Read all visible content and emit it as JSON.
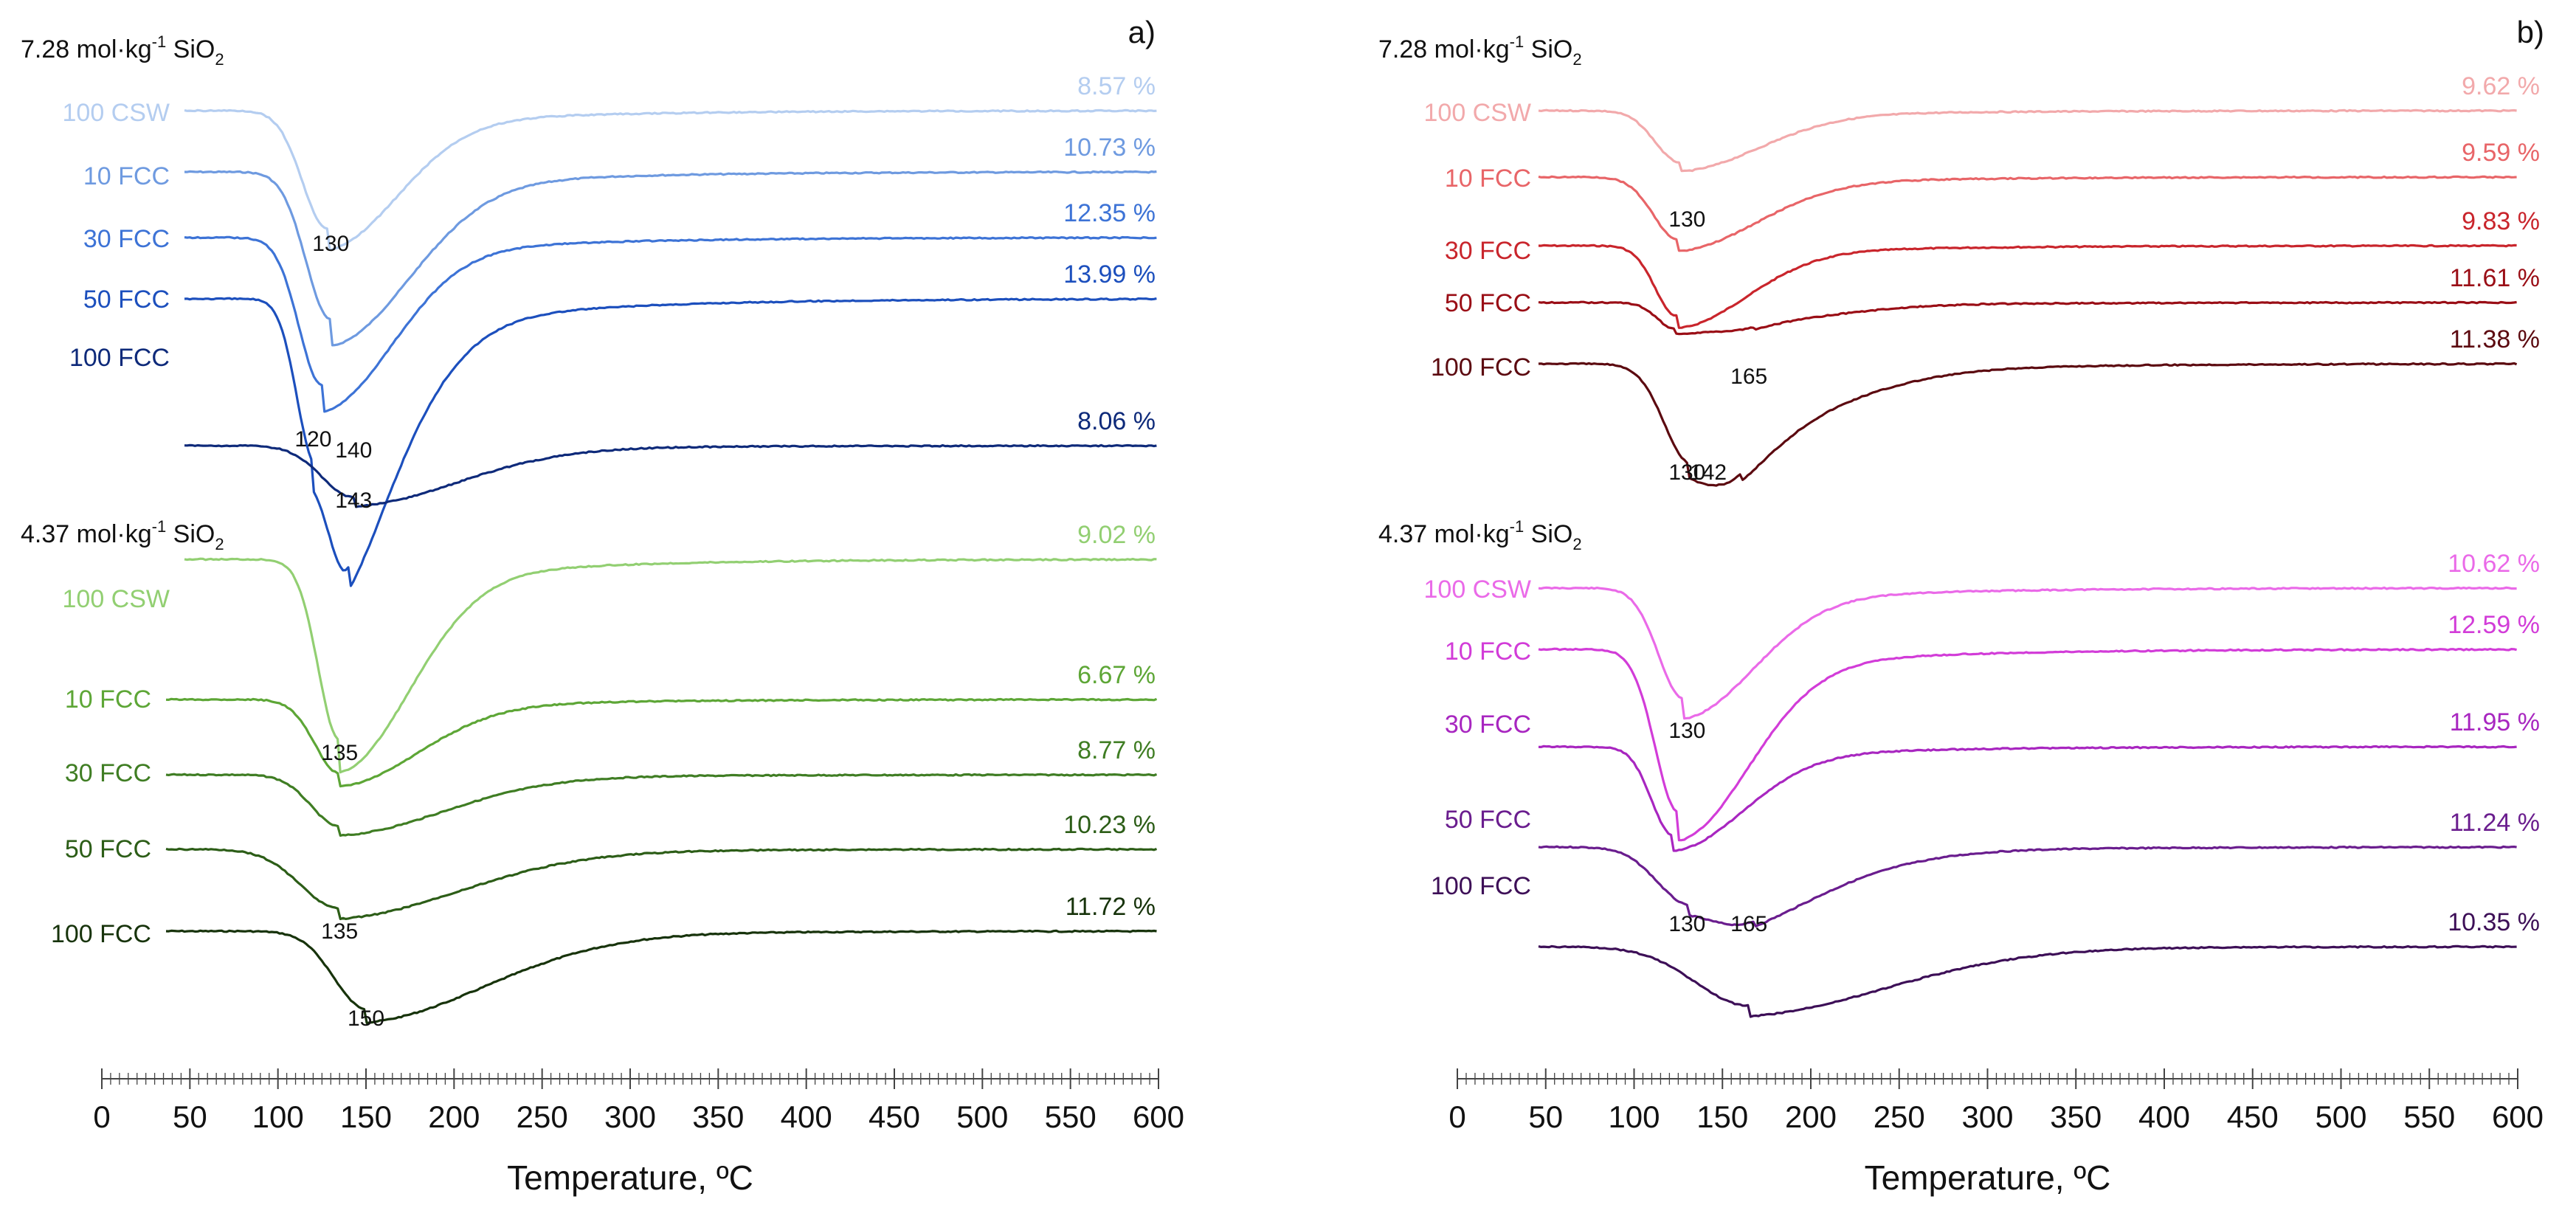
{
  "chart_data": [
    {
      "type": "line",
      "panel_label": "a)",
      "xlabel": "Temperature, ºC",
      "xlim": [
        0,
        600
      ],
      "x_ticks": [
        "0",
        "50",
        "100",
        "150",
        "200",
        "250",
        "300",
        "350",
        "400",
        "450",
        "500",
        "550",
        "600"
      ],
      "groups": [
        {
          "concentration": "7.28 mol·kg",
          "unit_sup": "-1",
          "unit_rest": " SiO",
          "unit_sub": "2",
          "series": [
            {
              "name": "100 CSW",
              "mass_loss": "8.57 %",
              "color": "#b4cdf0",
              "peaks": [
                {
                  "temperature": 130,
                  "label": "130"
                }
              ]
            },
            {
              "name": "10 FCC",
              "mass_loss": "10.73 %",
              "color": "#6e9ae0",
              "peaks": []
            },
            {
              "name": "30 FCC",
              "mass_loss": "12.35 %",
              "color": "#3d73d6",
              "peaks": []
            },
            {
              "name": "50 FCC",
              "mass_loss": "13.99 %",
              "color": "#1c4fbd",
              "peaks": [
                {
                  "temperature": 120,
                  "label": "120"
                },
                {
                  "temperature": 140,
                  "label": "140"
                }
              ]
            },
            {
              "name": "100 FCC",
              "mass_loss": "8.06 %",
              "color": "#0e2a7a",
              "peaks": [
                {
                  "temperature": 143,
                  "label": "143"
                }
              ]
            }
          ]
        },
        {
          "concentration": "4.37 mol·kg",
          "unit_sup": "-1",
          "unit_rest": " SiO",
          "unit_sub": "2",
          "series": [
            {
              "name": "100 CSW",
              "mass_loss": "9.02 %",
              "color": "#92cf72",
              "peaks": []
            },
            {
              "name": "10 FCC",
              "mass_loss": "6.67 %",
              "color": "#5da636",
              "peaks": [
                {
                  "temperature": 135,
                  "label": "135"
                }
              ]
            },
            {
              "name": "30 FCC",
              "mass_loss": "8.77 %",
              "color": "#3f7d23",
              "peaks": []
            },
            {
              "name": "50 FCC",
              "mass_loss": "10.23 %",
              "color": "#2c5d17",
              "peaks": [
                {
                  "temperature": 135,
                  "label": "135"
                }
              ]
            },
            {
              "name": "100 FCC",
              "mass_loss": "11.72 %",
              "color": "#17330b",
              "peaks": [
                {
                  "temperature": 150,
                  "label": "150"
                }
              ]
            }
          ]
        }
      ]
    },
    {
      "type": "line",
      "panel_label": "b)",
      "xlabel": "Temperature, ºC",
      "xlim": [
        0,
        600
      ],
      "x_ticks": [
        "0",
        "50",
        "100",
        "150",
        "200",
        "250",
        "300",
        "350",
        "400",
        "450",
        "500",
        "550",
        "600"
      ],
      "groups": [
        {
          "concentration": "7.28 mol·kg",
          "unit_sup": "-1",
          "unit_rest": " SiO",
          "unit_sub": "2",
          "series": [
            {
              "name": "100 CSW",
              "mass_loss": "9.62 %",
              "color": "#f2a9ab",
              "peaks": [
                {
                  "temperature": 130,
                  "label": "130"
                }
              ]
            },
            {
              "name": "10 FCC",
              "mass_loss": "9.59 %",
              "color": "#e86568",
              "peaks": []
            },
            {
              "name": "30 FCC",
              "mass_loss": "9.83 %",
              "color": "#c9252c",
              "peaks": []
            },
            {
              "name": "50 FCC",
              "mass_loss": "11.61 %",
              "color": "#9a0e16",
              "peaks": [
                {
                  "temperature": 165,
                  "label": "165"
                }
              ]
            },
            {
              "name": "100 FCC",
              "mass_loss": "11.38 %",
              "color": "#5c0a10",
              "peaks": [
                {
                  "temperature": 130,
                  "label": "130"
                },
                {
                  "temperature": 142,
                  "label": "142"
                }
              ]
            }
          ]
        },
        {
          "concentration": "4.37 mol·kg",
          "unit_sup": "-1",
          "unit_rest": " SiO",
          "unit_sub": "2",
          "series": [
            {
              "name": "100 CSW",
              "mass_loss": "10.62 %",
              "color": "#ea6ae8",
              "peaks": []
            },
            {
              "name": "10 FCC",
              "mass_loss": "12.59 %",
              "color": "#d23cd8",
              "peaks": [
                {
                  "temperature": 130,
                  "label": "130"
                }
              ]
            },
            {
              "name": "30 FCC",
              "mass_loss": "11.95 %",
              "color": "#a826c0",
              "peaks": []
            },
            {
              "name": "50 FCC",
              "mass_loss": "11.24 %",
              "color": "#6a1d8e",
              "peaks": [
                {
                  "temperature": 130,
                  "label": "130"
                },
                {
                  "temperature": 165,
                  "label": "165"
                }
              ]
            },
            {
              "name": "100 FCC",
              "mass_loss": "10.35 %",
              "color": "#3d0f57",
              "peaks": []
            }
          ]
        }
      ]
    }
  ]
}
